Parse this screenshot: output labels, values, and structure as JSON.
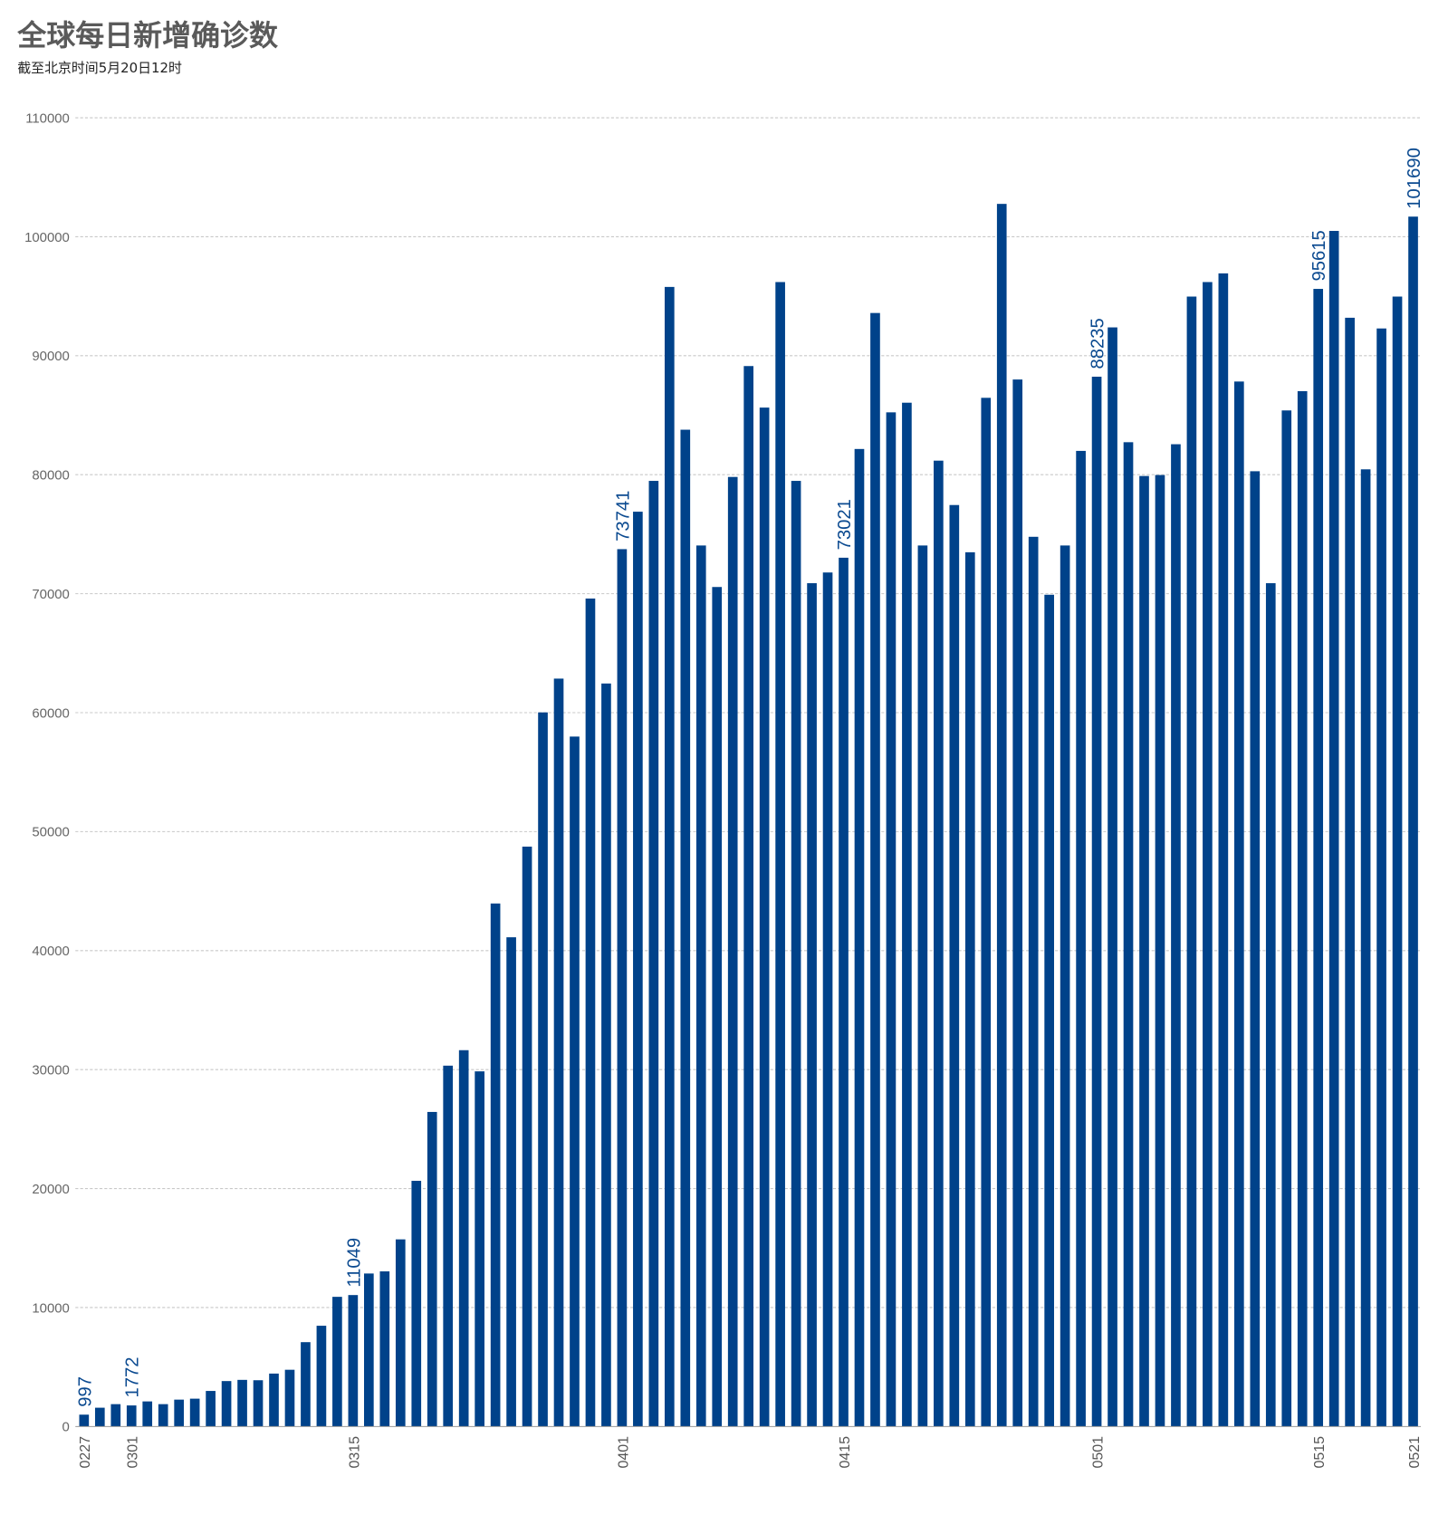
{
  "chart_data": {
    "type": "bar",
    "title": "全球每日新增确诊数",
    "subtitle": "截至北京时间5月20日12时",
    "xlabel": "",
    "ylabel": "",
    "ylim": [
      0,
      110000
    ],
    "yticks": [
      0,
      10000,
      20000,
      30000,
      40000,
      50000,
      60000,
      70000,
      80000,
      90000,
      100000,
      110000
    ],
    "grid": true,
    "bar_color": "#00428a",
    "label_color": "#0b4a90",
    "categories": [
      "0227",
      "0228",
      "0229",
      "0301",
      "0302",
      "0303",
      "0304",
      "0305",
      "0306",
      "0307",
      "0308",
      "0309",
      "0310",
      "0311",
      "0312",
      "0313",
      "0314",
      "0315",
      "0316",
      "0317",
      "0318",
      "0319",
      "0320",
      "0321",
      "0322",
      "0323",
      "0324",
      "0325",
      "0326",
      "0327",
      "0328",
      "0329",
      "0330",
      "0331",
      "0401",
      "0402",
      "0403",
      "0404",
      "0405",
      "0406",
      "0407",
      "0408",
      "0409",
      "0410",
      "0411",
      "0412",
      "0413",
      "0414",
      "0415",
      "0416",
      "0417",
      "0418",
      "0419",
      "0420",
      "0421",
      "0422",
      "0423",
      "0424",
      "0425",
      "0426",
      "0427",
      "0428",
      "0429",
      "0430",
      "0501",
      "0502",
      "0503",
      "0504",
      "0505",
      "0506",
      "0507",
      "0508",
      "0509",
      "0510",
      "0511",
      "0512",
      "0513",
      "0514",
      "0515",
      "0516",
      "0517",
      "0518",
      "0519",
      "0520",
      "0521"
    ],
    "x_tick_labels": [
      "0227",
      "0301",
      "0315",
      "0401",
      "0415",
      "0501",
      "0515",
      "0521"
    ],
    "values": [
      997,
      1580,
      1880,
      1772,
      2110,
      1880,
      2260,
      2340,
      2990,
      3820,
      3920,
      3890,
      4450,
      4770,
      7090,
      8470,
      10900,
      11049,
      12860,
      13040,
      15730,
      20650,
      26440,
      30330,
      31630,
      29850,
      43960,
      41120,
      48740,
      60020,
      62860,
      57990,
      69590,
      62450,
      73741,
      76890,
      79480,
      95780,
      83780,
      74050,
      70560,
      79810,
      89130,
      85640,
      96190,
      79480,
      70880,
      71780,
      73021,
      82160,
      93590,
      85240,
      86050,
      74050,
      81180,
      77450,
      73480,
      86460,
      102760,
      88000,
      74780,
      69910,
      74050,
      82000,
      88235,
      92380,
      82730,
      79890,
      79970,
      82560,
      94970,
      96190,
      96920,
      87830,
      80290,
      70880,
      85400,
      87020,
      95615,
      100490,
      93190,
      80450,
      92290,
      94970,
      101690
    ],
    "data_labels": [
      {
        "category": "0227",
        "text": "997"
      },
      {
        "category": "0301",
        "text": "1772"
      },
      {
        "category": "0315",
        "text": "11049"
      },
      {
        "category": "0401",
        "text": "73741"
      },
      {
        "category": "0415",
        "text": "73021"
      },
      {
        "category": "0501",
        "text": "88235"
      },
      {
        "category": "0515",
        "text": "95615"
      },
      {
        "category": "0521",
        "text": "101690"
      }
    ]
  }
}
